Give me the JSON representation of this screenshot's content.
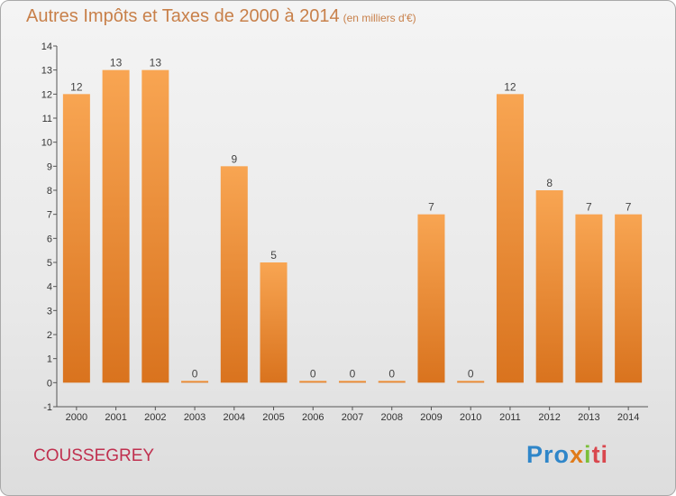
{
  "chart_data": {
    "type": "bar",
    "title": "Autres Impôts et Taxes de 2000 à 2014",
    "unit": "(en milliers d'€)",
    "categories": [
      "2000",
      "2001",
      "2002",
      "2003",
      "2004",
      "2005",
      "2006",
      "2007",
      "2008",
      "2009",
      "2010",
      "2011",
      "2012",
      "2013",
      "2014"
    ],
    "values": [
      12,
      13,
      13,
      0,
      9,
      5,
      0,
      0,
      0,
      7,
      0,
      12,
      8,
      7,
      7
    ],
    "ylim": [
      -1,
      14
    ],
    "yticks": [
      -1,
      0,
      1,
      2,
      3,
      4,
      5,
      6,
      7,
      8,
      9,
      10,
      11,
      12,
      13,
      14
    ],
    "bar_color": "#f0913c",
    "grid": false,
    "legend": "none"
  },
  "place_name": "COUSSEGREY",
  "logo": {
    "part1": "Pro",
    "part2": "x",
    "part3": "i",
    "part4": "ti"
  }
}
